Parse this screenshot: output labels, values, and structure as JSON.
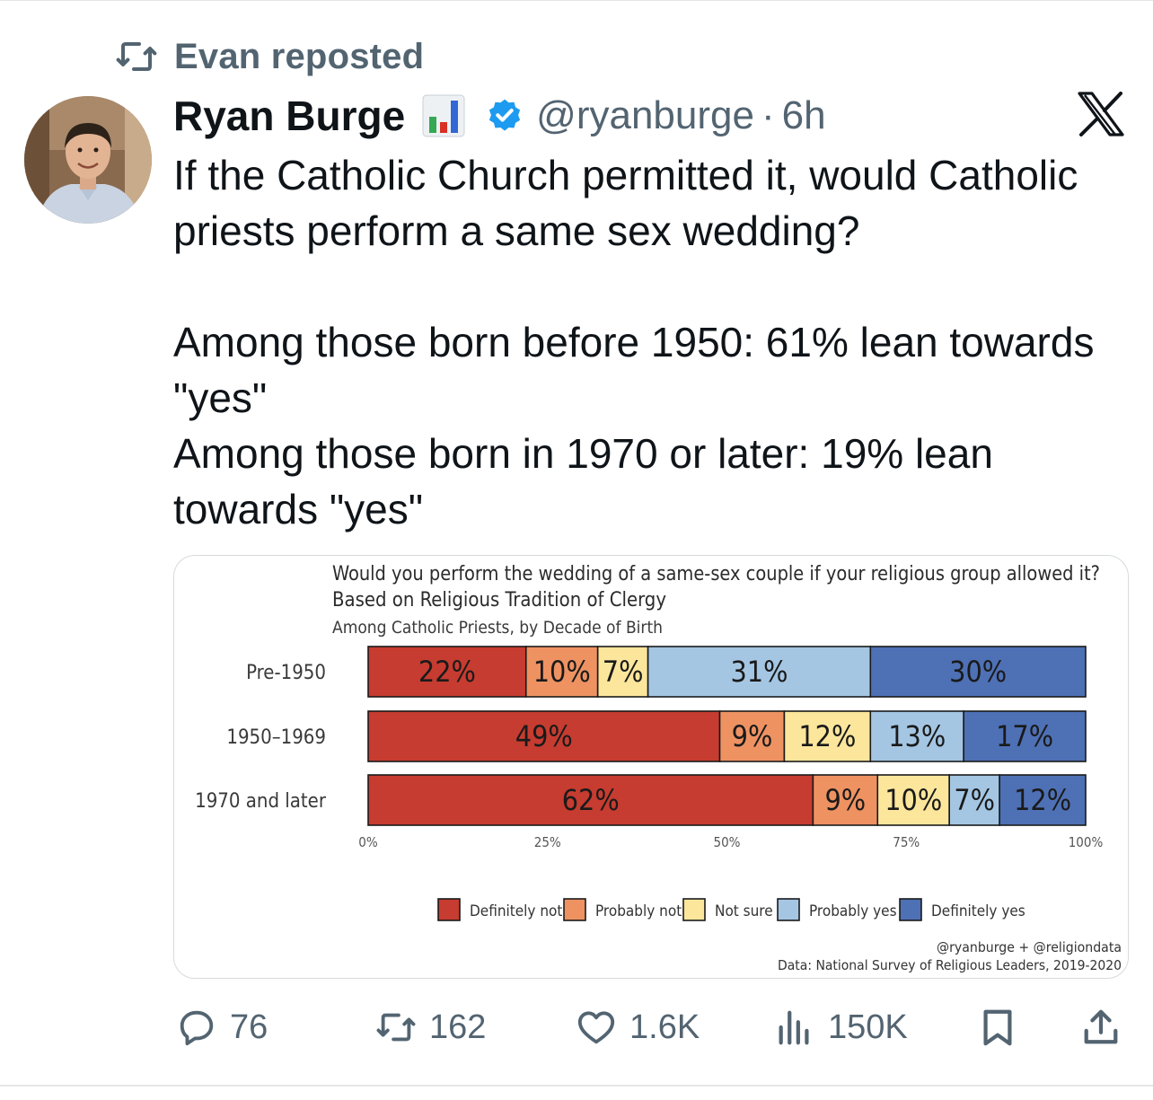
{
  "repost": {
    "icon": "repost-icon",
    "text": "Evan reposted"
  },
  "author": {
    "name": "Ryan Burge",
    "emoji": "bar-chart-emoji",
    "verified_icon": "verified-badge-icon",
    "handle": "@ryanburge",
    "separator": "·",
    "time": "6h"
  },
  "platform_logo": "x-logo-icon",
  "tweet": {
    "line1": "If the Catholic Church permitted it, would Catholic priests perform a same sex wedding?",
    "line2": "Among those born before 1950: 61% lean towards \"yes\"",
    "line3": "Among those born in 1970 or later: 19% lean towards \"yes\""
  },
  "chart_data": {
    "type": "bar",
    "orientation": "horizontal",
    "stacked": true,
    "title": "Would you perform the wedding of a same-sex couple if your religious group allowed it?",
    "subtitle": "Based on Religious Tradition of Clergy",
    "subtitle2": "Among Catholic Priests, by Decade of Birth",
    "categories": [
      "Pre-1950",
      "1950–1969",
      "1970 and later"
    ],
    "series": [
      {
        "name": "Definitely not",
        "color": "#c63c30",
        "values": [
          22,
          49,
          62
        ]
      },
      {
        "name": "Probably not",
        "color": "#ee9262",
        "values": [
          10,
          9,
          9
        ]
      },
      {
        "name": "Not sure",
        "color": "#fbe69c",
        "values": [
          7,
          12,
          10
        ]
      },
      {
        "name": "Probably yes",
        "color": "#a4c6e3",
        "values": [
          31,
          13,
          7
        ]
      },
      {
        "name": "Definitely yes",
        "color": "#4e70b5",
        "values": [
          30,
          17,
          12
        ]
      }
    ],
    "data_labels": [
      [
        "22%",
        "10%",
        "7%",
        "31%",
        "30%"
      ],
      [
        "49%",
        "9%",
        "12%",
        "13%",
        "17%"
      ],
      [
        "62%",
        "9%",
        "10%",
        "7%",
        "12%"
      ]
    ],
    "xticks": [
      "0%",
      "25%",
      "50%",
      "75%",
      "100%"
    ],
    "xlim": [
      0,
      100
    ],
    "grid": false,
    "legend_position": "bottom",
    "credit": "@ryanburge + @religiondata",
    "source": "Data: National Survey of Religious Leaders, 2019-2020"
  },
  "actions": {
    "replies": {
      "icon": "reply-icon",
      "count": "76"
    },
    "reposts": {
      "icon": "repost-icon",
      "count": "162"
    },
    "likes": {
      "icon": "heart-icon",
      "count": "1.6K"
    },
    "views": {
      "icon": "views-icon",
      "count": "150K"
    },
    "bookmark": {
      "icon": "bookmark-icon"
    },
    "share": {
      "icon": "share-icon"
    }
  },
  "colors": {
    "text_primary": "#0f1419",
    "text_secondary": "#536471",
    "verified_blue": "#1d9bf0"
  }
}
